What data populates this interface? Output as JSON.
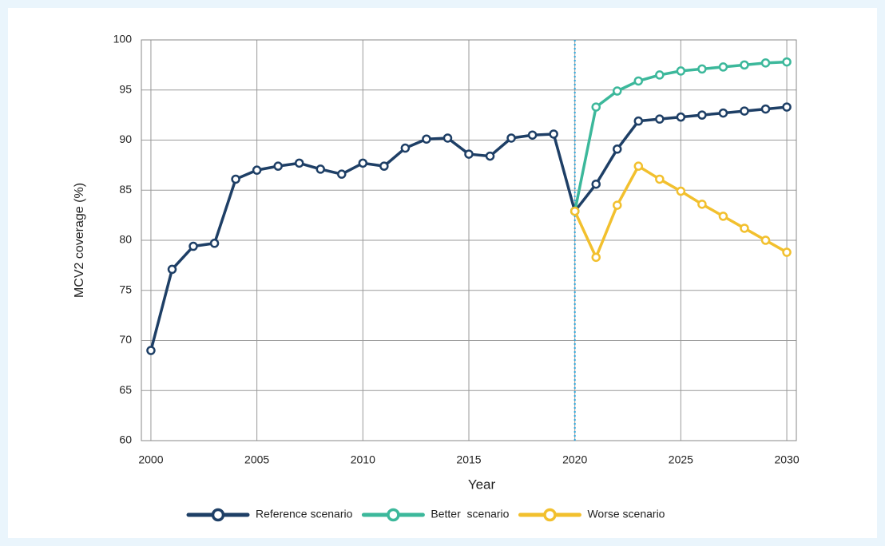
{
  "chart_data": {
    "type": "line",
    "x_label": "Year",
    "y_label": "MCV2 coverage (%)",
    "xlim": [
      1999.55,
      2030.45
    ],
    "xticks": [
      2000,
      2005,
      2010,
      2015,
      2020,
      2025,
      2030
    ],
    "ylim": [
      60,
      100
    ],
    "yticks": [
      60,
      65,
      70,
      75,
      80,
      85,
      90,
      95,
      100
    ],
    "grid": true,
    "legend": "bottom",
    "reference_line_x": 2020,
    "reference_line_color": "#2aa6dc",
    "series": [
      {
        "name": "Reference scenario",
        "color": "#1e3f66",
        "x": [
          2000,
          2001,
          2002,
          2003,
          2004,
          2005,
          2006,
          2007,
          2008,
          2009,
          2010,
          2011,
          2012,
          2013,
          2014,
          2015,
          2016,
          2017,
          2018,
          2019,
          2020,
          2021,
          2022,
          2023,
          2024,
          2025,
          2026,
          2027,
          2028,
          2029,
          2030
        ],
        "values": [
          69,
          77.1,
          79.4,
          79.7,
          86.1,
          87,
          87.4,
          87.7,
          87.1,
          86.6,
          87.7,
          87.4,
          89.2,
          90.1,
          90.2,
          88.6,
          88.4,
          90.2,
          90.5,
          90.6,
          82.9,
          85.6,
          89.1,
          91.9,
          92.1,
          92.3,
          92.5,
          92.7,
          92.9,
          93.1,
          93.3
        ]
      },
      {
        "name": "Better  scenario",
        "color": "#3cb89b",
        "x": [
          2020,
          2021,
          2022,
          2023,
          2024,
          2025,
          2026,
          2027,
          2028,
          2029,
          2030
        ],
        "values": [
          82.9,
          93.3,
          94.9,
          95.9,
          96.5,
          96.9,
          97.1,
          97.3,
          97.5,
          97.7,
          97.8
        ]
      },
      {
        "name": "Worse scenario",
        "color": "#f2c02e",
        "x": [
          2020,
          2021,
          2022,
          2023,
          2024,
          2025,
          2026,
          2027,
          2028,
          2029,
          2030
        ],
        "values": [
          82.9,
          78.3,
          83.5,
          87.4,
          86.1,
          84.9,
          83.6,
          82.4,
          81.2,
          80.0,
          78.8
        ]
      }
    ]
  }
}
